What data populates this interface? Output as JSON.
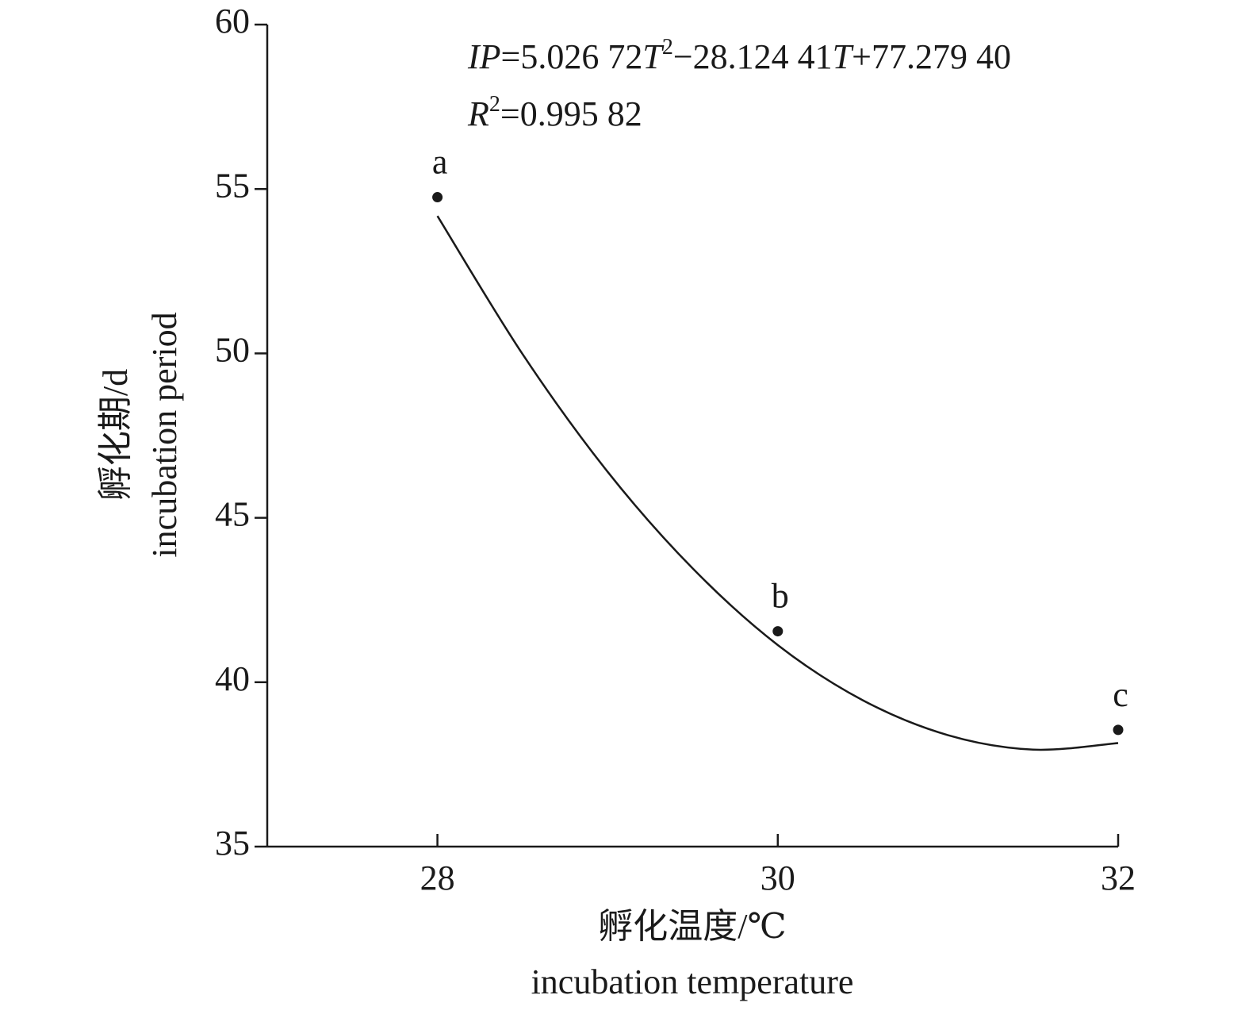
{
  "chart_data": {
    "type": "scatter",
    "x": [
      28,
      30,
      32
    ],
    "values": [
      54.75,
      41.55,
      38.55
    ],
    "point_labels": [
      "a",
      "b",
      "c"
    ],
    "color": "#1a1a1a",
    "fit": {
      "x": [
        28,
        28.5,
        29,
        29.5,
        30,
        30.5,
        31,
        31.5,
        32
      ],
      "values": [
        54.18,
        49.98,
        46.4,
        43.46,
        41.13,
        39.45,
        38.39,
        37.95,
        38.15
      ]
    },
    "xlim": [
      27,
      32
    ],
    "xticks": [
      28,
      30,
      32
    ],
    "ylim": [
      35,
      60
    ],
    "yticks": [
      35,
      40,
      45,
      50,
      55,
      60
    ],
    "x_label": [
      "孵化温度/℃",
      "incubation temperature"
    ],
    "y_label": [
      "孵化期/d",
      "incubation period"
    ],
    "equation": [
      [
        {
          "text": "IP",
          "italic": true
        },
        {
          "text": "=5.026 72"
        },
        {
          "text": "T",
          "italic": true
        },
        {
          "text": "2",
          "sup": true
        },
        {
          "text": "−28.124 41"
        },
        {
          "text": "T",
          "italic": true
        },
        {
          "text": "+77.279 40"
        }
      ],
      [
        {
          "text": "R",
          "italic": true
        },
        {
          "text": "2",
          "sup": true
        },
        {
          "text": "=0.995 82"
        }
      ]
    ]
  }
}
